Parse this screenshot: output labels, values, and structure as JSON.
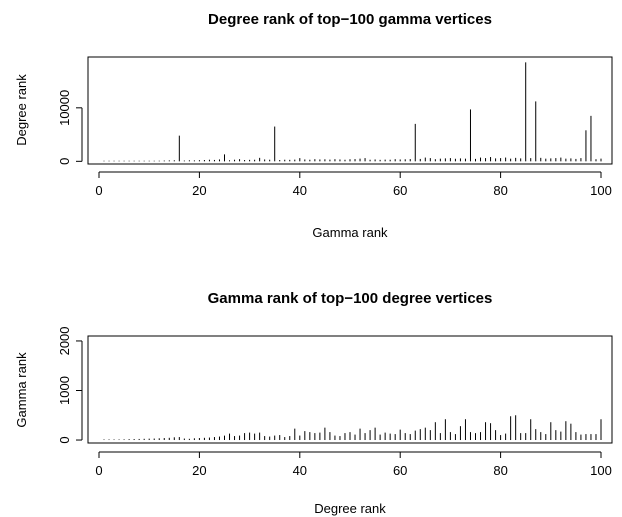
{
  "chart_data": [
    {
      "type": "bar",
      "title": "Degree rank of top−100 gamma vertices",
      "xlabel": "Gamma rank",
      "ylabel": "Degree rank",
      "xlim": [
        0,
        100
      ],
      "ylim": [
        -500,
        19500
      ],
      "xticks": [
        "0",
        "20",
        "40",
        "60",
        "80",
        "100"
      ],
      "yticks": [
        "0",
        "10000"
      ],
      "x": [
        1,
        2,
        3,
        4,
        5,
        6,
        7,
        8,
        9,
        10,
        11,
        12,
        13,
        14,
        15,
        16,
        17,
        18,
        19,
        20,
        21,
        22,
        23,
        24,
        25,
        26,
        27,
        28,
        29,
        30,
        31,
        32,
        33,
        34,
        35,
        36,
        37,
        38,
        39,
        40,
        41,
        42,
        43,
        44,
        45,
        46,
        47,
        48,
        49,
        50,
        51,
        52,
        53,
        54,
        55,
        56,
        57,
        58,
        59,
        60,
        61,
        62,
        63,
        64,
        65,
        66,
        67,
        68,
        69,
        70,
        71,
        72,
        73,
        74,
        75,
        76,
        77,
        78,
        79,
        80,
        81,
        82,
        83,
        84,
        85,
        86,
        87,
        88,
        89,
        90,
        91,
        92,
        93,
        94,
        95,
        96,
        97,
        98,
        99,
        100
      ],
      "values": [
        20,
        30,
        40,
        60,
        50,
        70,
        80,
        60,
        90,
        110,
        100,
        120,
        150,
        180,
        200,
        4800,
        150,
        200,
        180,
        220,
        250,
        300,
        260,
        350,
        1300,
        200,
        300,
        400,
        250,
        280,
        300,
        650,
        350,
        300,
        6500,
        250,
        300,
        280,
        320,
        600,
        350,
        300,
        400,
        350,
        380,
        320,
        400,
        350,
        300,
        380,
        420,
        500,
        600,
        300,
        350,
        280,
        320,
        300,
        400,
        350,
        380,
        420,
        7000,
        450,
        700,
        600,
        400,
        500,
        550,
        600,
        480,
        550,
        500,
        9700,
        450,
        700,
        600,
        800,
        550,
        600,
        700,
        500,
        650,
        550,
        18500,
        600,
        11200,
        650,
        500,
        550,
        600,
        700,
        500,
        550,
        450,
        600,
        5800,
        8500,
        400,
        500
      ]
    },
    {
      "type": "bar",
      "title": "Gamma rank of top−100 degree vertices",
      "xlabel": "Degree rank",
      "ylabel": "Gamma rank",
      "xlim": [
        0,
        100
      ],
      "ylim": [
        -60,
        2100
      ],
      "xticks": [
        "0",
        "20",
        "40",
        "60",
        "80",
        "100"
      ],
      "yticks": [
        "0",
        "1000",
        "2000"
      ],
      "x": [
        1,
        2,
        3,
        4,
        5,
        6,
        7,
        8,
        9,
        10,
        11,
        12,
        13,
        14,
        15,
        16,
        17,
        18,
        19,
        20,
        21,
        22,
        23,
        24,
        25,
        26,
        27,
        28,
        29,
        30,
        31,
        32,
        33,
        34,
        35,
        36,
        37,
        38,
        39,
        40,
        41,
        42,
        43,
        44,
        45,
        46,
        47,
        48,
        49,
        50,
        51,
        52,
        53,
        54,
        55,
        56,
        57,
        58,
        59,
        60,
        61,
        62,
        63,
        64,
        65,
        66,
        67,
        68,
        69,
        70,
        71,
        72,
        73,
        74,
        75,
        76,
        77,
        78,
        79,
        80,
        81,
        82,
        83,
        84,
        85,
        86,
        87,
        88,
        89,
        90,
        91,
        92,
        93,
        94,
        95,
        96,
        97,
        98,
        99,
        100
      ],
      "values": [
        5,
        8,
        10,
        12,
        14,
        18,
        20,
        22,
        25,
        28,
        30,
        35,
        40,
        45,
        55,
        60,
        30,
        25,
        35,
        40,
        45,
        50,
        60,
        70,
        90,
        130,
        80,
        90,
        140,
        150,
        130,
        150,
        80,
        70,
        90,
        100,
        60,
        80,
        230,
        90,
        180,
        160,
        140,
        150,
        250,
        160,
        90,
        80,
        140,
        160,
        110,
        230,
        140,
        200,
        250,
        110,
        150,
        130,
        120,
        210,
        140,
        120,
        190,
        220,
        250,
        200,
        360,
        140,
        420,
        160,
        120,
        280,
        420,
        160,
        140,
        160,
        360,
        340,
        200,
        100,
        130,
        480,
        500,
        140,
        140,
        420,
        220,
        160,
        120,
        360,
        200,
        170,
        380,
        330,
        160,
        110,
        120,
        120,
        120,
        420
      ]
    }
  ]
}
